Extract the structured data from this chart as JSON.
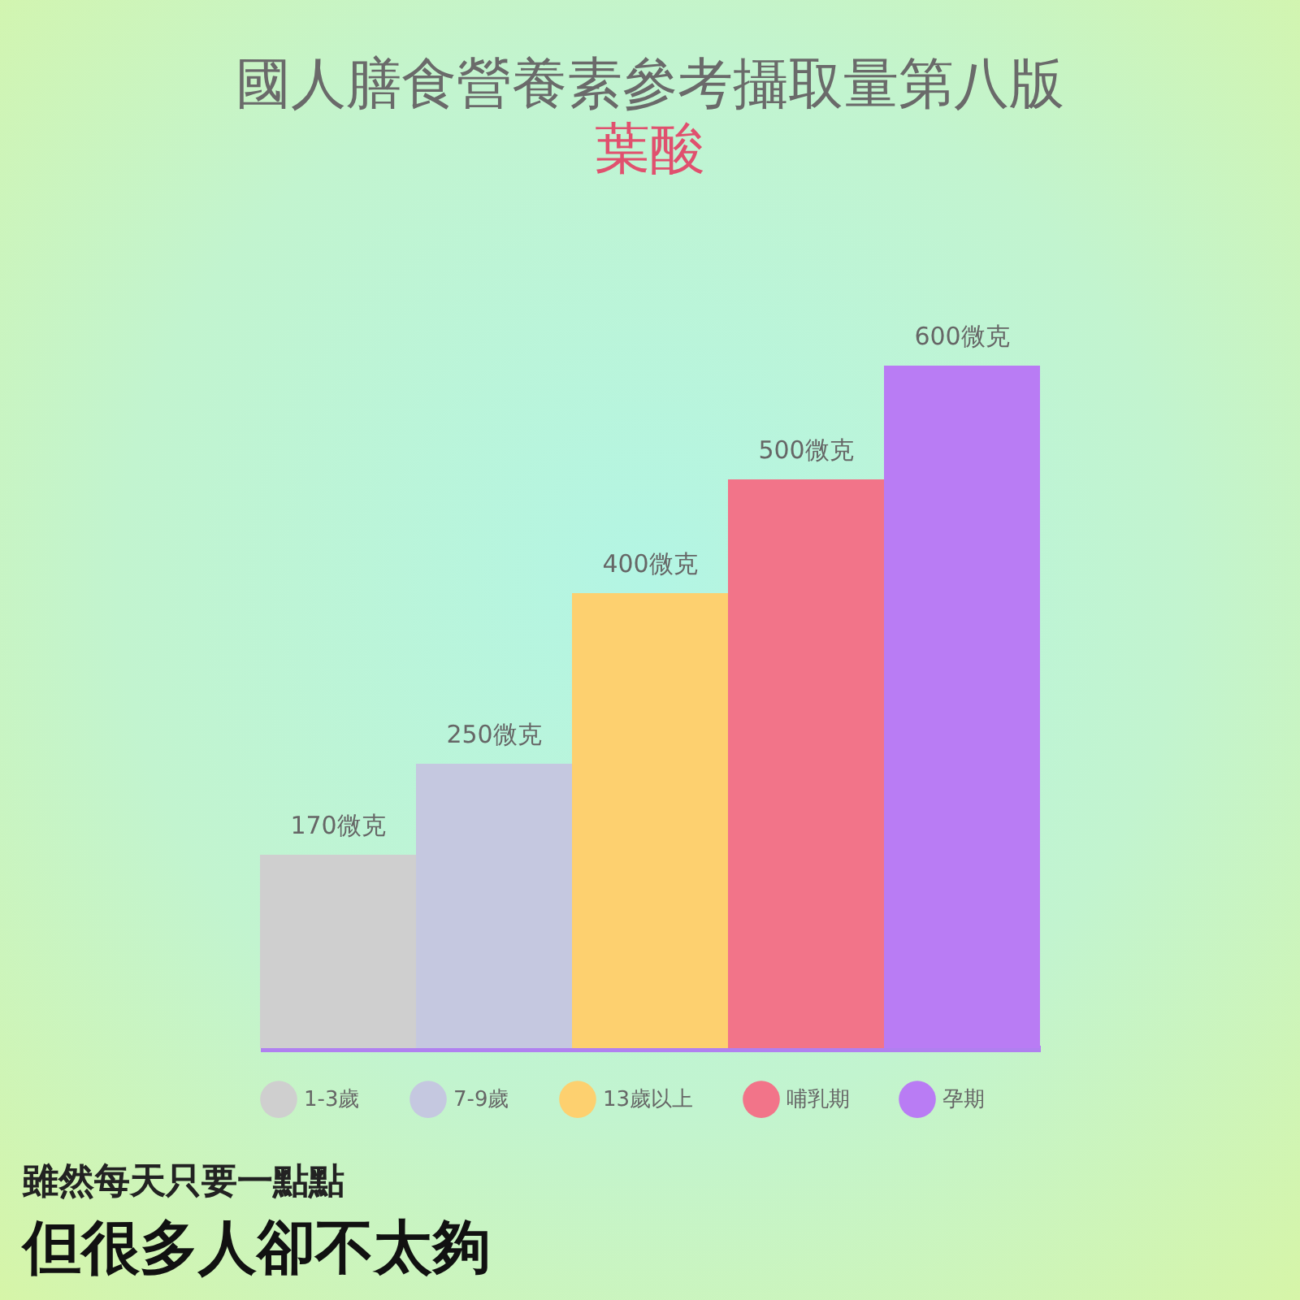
{
  "chart_data": {
    "type": "bar",
    "title": "國人膳食營養素參考攝取量第八版",
    "subtitle": "葉酸",
    "categories": [
      null
    ],
    "series": [
      {
        "name": "1-3歲",
        "color": "#cfcfcf",
        "values": [
          170
        ],
        "value_labels": [
          "170微克"
        ]
      },
      {
        "name": "7-9歲",
        "color": "#c5c8e0",
        "values": [
          250
        ],
        "value_labels": [
          "250微克"
        ]
      },
      {
        "name": "13歲以上",
        "color": "#fdd06f",
        "values": [
          400
        ],
        "value_labels": [
          "400微克"
        ]
      },
      {
        "name": "哺乳期",
        "color": "#f27489",
        "values": [
          500
        ],
        "value_labels": [
          "500微克"
        ]
      },
      {
        "name": "孕期",
        "color": "#b97cf4",
        "values": [
          600
        ],
        "value_labels": [
          "600微克"
        ]
      }
    ],
    "legend": "bottom",
    "grid": false,
    "tick_labels": false,
    "annotations": [
      "雖然每天只要一點點",
      "但很多人卻不太夠"
    ]
  }
}
